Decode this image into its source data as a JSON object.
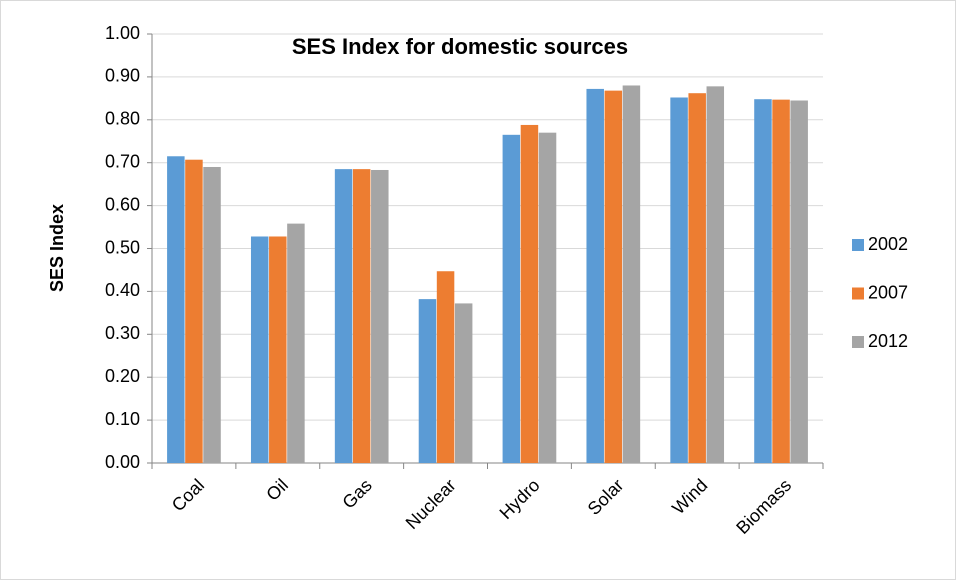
{
  "chart_data": {
    "type": "bar",
    "title": "SES Index for domestic sources",
    "y_label": "SES Index",
    "categories": [
      "Coal",
      "Oil",
      "Gas",
      "Nuclear",
      "Hydro",
      "Solar",
      "Wind",
      "Biomass"
    ],
    "series": [
      {
        "name": "2002",
        "color": "#5b9bd5",
        "values": [
          0.715,
          0.528,
          0.685,
          0.382,
          0.765,
          0.872,
          0.852,
          0.848
        ]
      },
      {
        "name": "2007",
        "color": "#ed7d31",
        "values": [
          0.707,
          0.528,
          0.685,
          0.447,
          0.788,
          0.868,
          0.862,
          0.847
        ]
      },
      {
        "name": "2012",
        "color": "#a5a5a5",
        "values": [
          0.69,
          0.558,
          0.683,
          0.372,
          0.77,
          0.88,
          0.878,
          0.845
        ]
      }
    ],
    "ylim": [
      0,
      1
    ],
    "yticks": [
      {
        "value": 0,
        "label": "0.00"
      },
      {
        "value": 0.1,
        "label": "0.10"
      },
      {
        "value": 0.2,
        "label": "0.20"
      },
      {
        "value": 0.3,
        "label": "0.30"
      },
      {
        "value": 0.4,
        "label": "0.40"
      },
      {
        "value": 0.5,
        "label": "0.50"
      },
      {
        "value": 0.6,
        "label": "0.60"
      },
      {
        "value": 0.7,
        "label": "0.70"
      },
      {
        "value": 0.8,
        "label": "0.80"
      },
      {
        "value": 0.9,
        "label": "0.90"
      },
      {
        "value": 1,
        "label": "1.00"
      }
    ],
    "grid": true,
    "legend": "right"
  }
}
